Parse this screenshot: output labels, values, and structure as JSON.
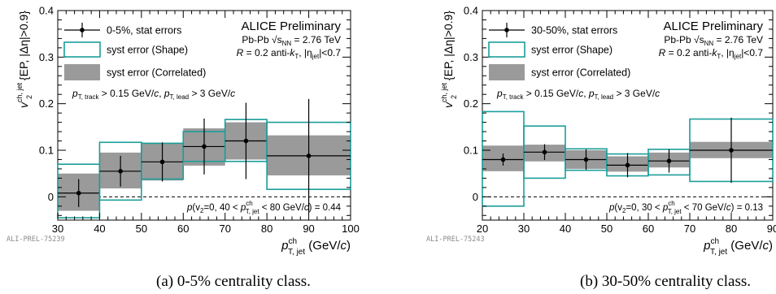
{
  "chart_data": [
    {
      "type": "scatter",
      "watermark": "ALI-PREL-75239",
      "caption": "(a) 0-5% centrality class.",
      "experiment": "ALICE Preliminary",
      "system": "Pb-Pb √s_NN = 2.76 TeV",
      "jetdef": "R = 0.2 anti-k_T, |η_jet|<0.7",
      "cuts": "p_T, track > 0.15 GeV/c, p_T, lead > 3 GeV/c",
      "pvalue": "p(v2=0, 40 < p^ch_T,jet < 80 GeV/c) = 0.44",
      "ylabel": "v^ch,jet_2 {EP, |Δη|>0.9}",
      "xlabel": "p^ch_T, jet (GeV/c)",
      "xlim": [
        30,
        100
      ],
      "ylim": [
        -0.05,
        0.4
      ],
      "xticks": [
        "30",
        "40",
        "50",
        "60",
        "70",
        "80",
        "90",
        "100"
      ],
      "yticks": [
        "0",
        "0.1",
        "0.2",
        "0.3",
        "0.4"
      ],
      "legend": [
        "0-5%, stat errors",
        "syst error (Shape)",
        "syst error (Correlated)"
      ],
      "points": [
        {
          "x": 35,
          "y": 0.008,
          "stat": 0.03,
          "shape": [
            -0.045,
            0.07
          ],
          "corr": [
            -0.03,
            0.05
          ]
        },
        {
          "x": 45,
          "y": 0.055,
          "stat": 0.033,
          "shape": [
            -0.007,
            0.117
          ],
          "corr": [
            0.018,
            0.095
          ]
        },
        {
          "x": 55,
          "y": 0.075,
          "stat": 0.042,
          "shape": [
            0.038,
            0.115
          ],
          "corr": [
            0.035,
            0.115
          ]
        },
        {
          "x": 65,
          "y": 0.108,
          "stat": 0.06,
          "shape": [
            0.076,
            0.14
          ],
          "corr": [
            0.067,
            0.147
          ]
        },
        {
          "x": 75,
          "y": 0.12,
          "stat": 0.082,
          "shape": [
            0.076,
            0.166
          ],
          "corr": [
            0.08,
            0.16
          ]
        },
        {
          "x": 90,
          "y": 0.088,
          "stat": 0.122,
          "xw": 10,
          "shape": [
            0.016,
            0.16
          ],
          "corr": [
            0.046,
            0.132
          ]
        }
      ]
    },
    {
      "type": "scatter",
      "watermark": "ALI-PREL-75243",
      "caption": "(b) 30-50% centrality class.",
      "experiment": "ALICE Preliminary",
      "system": "Pb-Pb √s_NN = 2.76 TeV",
      "jetdef": "R = 0.2 anti-k_T, |η_jet|<0.7",
      "cuts": "p_T, track > 0.15 GeV/c, p_T, lead > 3 GeV/c",
      "pvalue": "p(v2=0, 30 < p^ch_T,jet < 70 GeV/c) = 0.13",
      "ylabel": "v^ch,jet_2 {EP, |Δη|>0.9}",
      "xlabel": "p^ch_T, jet (GeV/c)",
      "xlim": [
        20,
        90
      ],
      "ylim": [
        -0.05,
        0.4
      ],
      "xticks": [
        "20",
        "30",
        "40",
        "50",
        "60",
        "70",
        "80",
        "90"
      ],
      "yticks": [
        "0",
        "0.1",
        "0.2",
        "0.3",
        "0.4"
      ],
      "legend": [
        "30-50%, stat errors",
        "syst error (Shape)",
        "syst error (Correlated)"
      ],
      "points": [
        {
          "x": 25,
          "y": 0.08,
          "stat": 0.013,
          "shape": [
            -0.02,
            0.183
          ],
          "corr": [
            0.055,
            0.11
          ]
        },
        {
          "x": 35,
          "y": 0.096,
          "stat": 0.017,
          "shape": [
            0.04,
            0.152
          ],
          "corr": [
            0.076,
            0.112
          ]
        },
        {
          "x": 45,
          "y": 0.08,
          "stat": 0.022,
          "shape": [
            0.057,
            0.103
          ],
          "corr": [
            0.06,
            0.1
          ]
        },
        {
          "x": 55,
          "y": 0.068,
          "stat": 0.026,
          "shape": [
            0.045,
            0.092
          ],
          "corr": [
            0.054,
            0.087
          ]
        },
        {
          "x": 65,
          "y": 0.077,
          "stat": 0.025,
          "shape": [
            0.047,
            0.102
          ],
          "corr": [
            0.063,
            0.095
          ]
        },
        {
          "x": 80,
          "y": 0.1,
          "stat": 0.07,
          "xw": 10,
          "shape": [
            0.033,
            0.167
          ],
          "corr": [
            0.083,
            0.118
          ]
        }
      ]
    }
  ],
  "colors": {
    "shape": "#1a9e9a",
    "corr": "#9a9a9a",
    "axis": "#000000",
    "watermark": "#8a8a8a"
  }
}
